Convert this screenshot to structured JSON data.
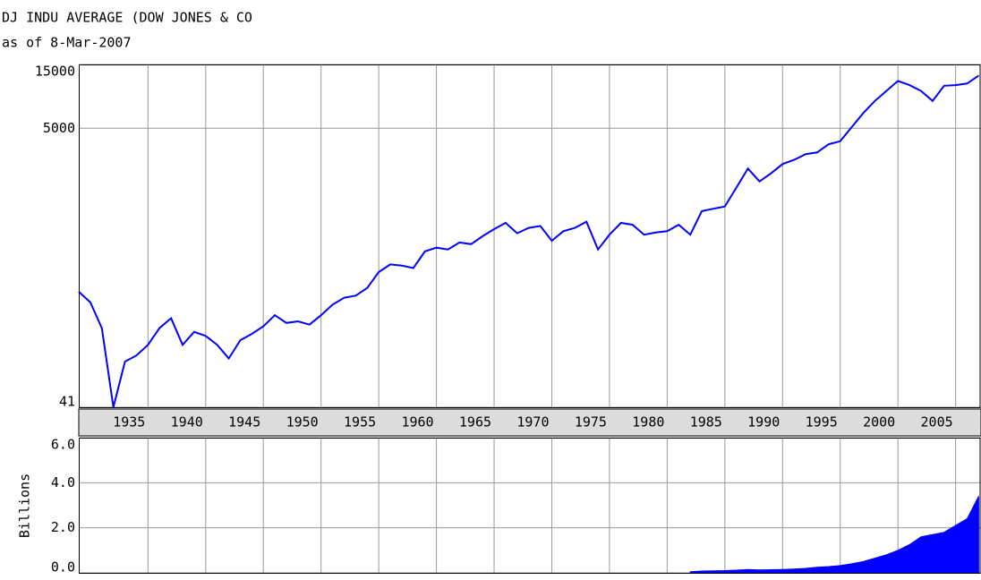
{
  "chart_data": [
    {
      "type": "line",
      "title": "DJ INDU AVERAGE (DOW JONES & CO",
      "subtitle": "as of 8-Mar-2007",
      "x": [
        1929,
        1930,
        1931,
        1932,
        1933,
        1934,
        1935,
        1936,
        1937,
        1938,
        1939,
        1940,
        1941,
        1942,
        1943,
        1944,
        1945,
        1946,
        1947,
        1948,
        1949,
        1950,
        1951,
        1952,
        1953,
        1954,
        1955,
        1956,
        1957,
        1958,
        1959,
        1960,
        1961,
        1962,
        1963,
        1964,
        1965,
        1966,
        1967,
        1968,
        1969,
        1970,
        1971,
        1972,
        1973,
        1974,
        1975,
        1976,
        1977,
        1978,
        1979,
        1980,
        1981,
        1982,
        1983,
        1984,
        1985,
        1986,
        1987,
        1988,
        1989,
        1990,
        1991,
        1992,
        1993,
        1994,
        1995,
        1996,
        1997,
        1998,
        1999,
        2000,
        2001,
        2002,
        2003,
        2004,
        2005,
        2006,
        2007
      ],
      "values": [
        300,
        250,
        160,
        41,
        90,
        100,
        120,
        160,
        190,
        120,
        150,
        140,
        120,
        95,
        130,
        145,
        165,
        200,
        175,
        180,
        170,
        200,
        240,
        270,
        280,
        320,
        420,
        480,
        470,
        450,
        600,
        640,
        620,
        700,
        680,
        780,
        880,
        980,
        820,
        900,
        930,
        720,
        850,
        900,
        1000,
        620,
        800,
        980,
        950,
        800,
        830,
        850,
        950,
        800,
        1200,
        1250,
        1300,
        1800,
        2500,
        2000,
        2300,
        2700,
        2900,
        3200,
        3300,
        3800,
        4000,
        5100,
        6500,
        8000,
        9500,
        11300,
        10500,
        9500,
        8000,
        10400,
        10500,
        10800,
        12400
      ],
      "color": "#0000ff",
      "log_scale": true,
      "xlim": [
        1929,
        2007.2
      ],
      "xticks": [
        1935,
        1940,
        1945,
        1950,
        1955,
        1960,
        1965,
        1970,
        1975,
        1980,
        1985,
        1990,
        1995,
        2000,
        2005
      ],
      "ylim": [
        41,
        15000
      ],
      "yticks": [
        41,
        5000,
        15000
      ],
      "grid": true
    },
    {
      "type": "area",
      "y_label": "Billions",
      "x": [
        1982,
        1983,
        1984,
        1985,
        1986,
        1987,
        1988,
        1989,
        1990,
        1991,
        1992,
        1993,
        1994,
        1995,
        1996,
        1997,
        1998,
        1999,
        2000,
        2001,
        2002,
        2003,
        2004,
        2005,
        2006,
        2007
      ],
      "values": [
        0.05,
        0.08,
        0.09,
        0.1,
        0.12,
        0.15,
        0.13,
        0.14,
        0.15,
        0.17,
        0.2,
        0.25,
        0.28,
        0.32,
        0.4,
        0.5,
        0.65,
        0.8,
        1.0,
        1.25,
        1.6,
        1.7,
        1.8,
        2.1,
        2.4,
        3.4
      ],
      "color": "#0000ff",
      "xlim": [
        1929,
        2007.2
      ],
      "ylim": [
        0,
        6
      ],
      "yticks": [
        {
          "value": 0,
          "label": "0.0"
        },
        {
          "value": 2,
          "label": "2.0"
        },
        {
          "value": 4,
          "label": "4.0"
        },
        {
          "value": 6,
          "label": "6.0"
        }
      ],
      "grid": true
    }
  ]
}
